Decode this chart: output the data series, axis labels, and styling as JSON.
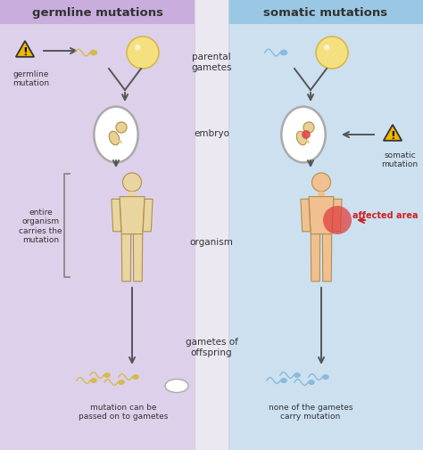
{
  "left_bg_color": "#ddd0ea",
  "right_bg_color": "#cce0f0",
  "left_header_bg": "#c9aedd",
  "right_header_bg": "#9ac8e4",
  "center_bg_color": "#ece8f2",
  "left_header": "germline mutations",
  "right_header": "somatic mutations",
  "text_color": "#333333",
  "label_parental": "parental\ngametes",
  "label_embryo": "embryo",
  "label_organism": "organism",
  "label_gametes_offspring": "gametes of\noffspring",
  "label_germline_mutation": "germline\nmutation",
  "label_entire_organism": "entire\norganism\ncarries the\nmutation",
  "label_mutation_passed": "mutation can be\npassed on to gametes",
  "label_somatic_mutation": "somatic\nmutation",
  "label_affected_area": "affected area",
  "label_none_gametes": "none of the gametes\ncarry mutation",
  "skin_color_left": "#e8d5a0",
  "skin_color_right": "#f0c090",
  "egg_color": "#f5e080",
  "egg_stroke": "#d4b84a",
  "sperm_color_left": "#d4b840",
  "sperm_color_right": "#80b8d8",
  "embryo_bg": "#ffffff",
  "embryo_outline": "#aaaaaa",
  "embryo_color": "#e8d098",
  "red_spot_color": "#e04040",
  "arrow_color": "#555555",
  "warning_yellow": "#f0b800",
  "warning_stroke": "#333333",
  "bracket_color": "#888888",
  "affected_text_color": "#cc2222"
}
